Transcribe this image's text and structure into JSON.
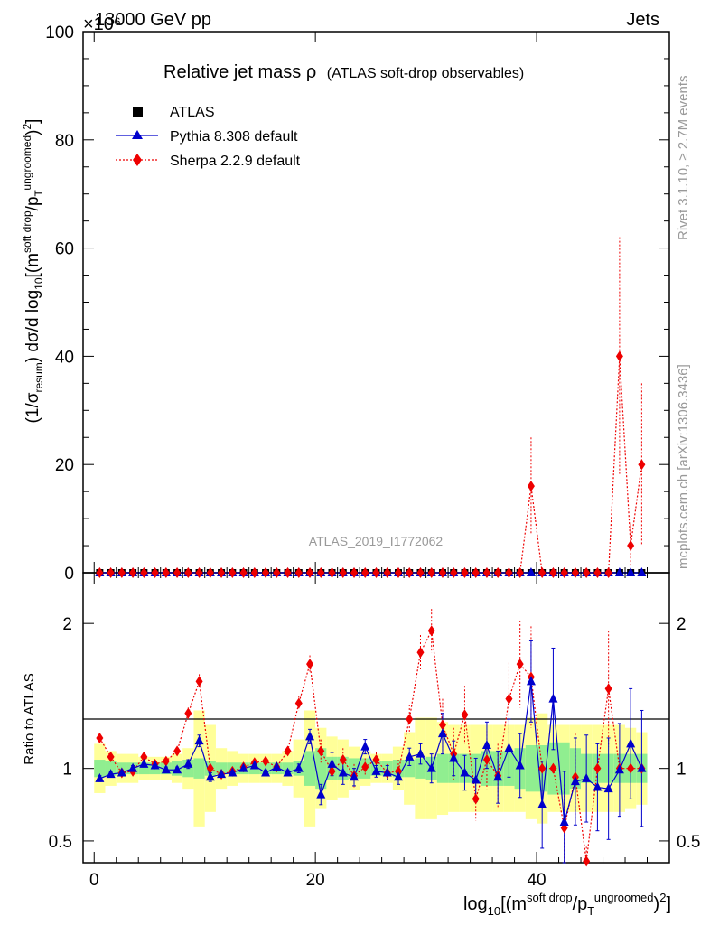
{
  "header": {
    "energy_label": "13000 GeV pp",
    "category_label": "Jets",
    "exponent_label": "×10⁶"
  },
  "side_labels": {
    "rivet": "Rivet 3.1.10, ≥ 2.7M events",
    "mcplots": "mcplots.cern.ch [arXiv:1306.3436]"
  },
  "chart_data": {
    "type": "line",
    "title_main": "Relative jet mass ρ",
    "title_sub": "(ATLAS soft-drop observables)",
    "analysis_id": "ATLAS_2019_I1772062",
    "ylabel_main": "(1/σ_resum) dσ/d log10[(m^soft drop/pT^ungroomed)^2]",
    "ylabel_ratio": "Ratio to ATLAS",
    "xlabel": "log10[(m^soft drop/pT^ungroomed)^2]",
    "xlim": [
      -1,
      52
    ],
    "ylim_main": [
      0,
      100
    ],
    "ylim_ratio": [
      0.35,
      2.35
    ],
    "x_ticks": [
      0,
      20,
      40
    ],
    "y_ticks_main": [
      0,
      20,
      40,
      60,
      80,
      100
    ],
    "y_ticks_ratio": [
      0.5,
      1,
      2
    ],
    "legend_position": "top-left",
    "grid": false,
    "colors": {
      "atlas": "#000000",
      "pythia": "#0000cc",
      "sherpa": "#ee0000",
      "band_inner": "#90ee90",
      "band_outer": "#ffff99"
    },
    "x": [
      0.5,
      1.5,
      2.5,
      3.5,
      4.5,
      5.5,
      6.5,
      7.5,
      8.5,
      9.5,
      10.5,
      11.5,
      12.5,
      13.5,
      14.5,
      15.5,
      16.5,
      17.5,
      18.5,
      19.5,
      20.5,
      21.5,
      22.5,
      23.5,
      24.5,
      25.5,
      26.5,
      27.5,
      28.5,
      29.5,
      30.5,
      31.5,
      32.5,
      33.5,
      34.5,
      35.5,
      36.5,
      37.5,
      38.5,
      39.5,
      40.5,
      41.5,
      42.5,
      43.5,
      44.5,
      45.5,
      46.5,
      47.5,
      48.5,
      49.5
    ],
    "series": [
      {
        "name": "ATLAS",
        "marker": "square",
        "main_values": [
          0,
          0,
          0,
          0,
          0,
          0,
          0,
          0,
          0,
          0,
          0,
          0,
          0,
          0,
          0,
          0,
          0,
          0,
          0,
          0,
          0,
          0,
          0,
          0,
          0,
          0,
          0,
          0,
          0,
          0,
          0,
          0,
          0,
          0,
          0,
          0,
          0,
          0,
          0,
          0,
          0,
          0,
          0,
          0,
          0,
          0,
          0,
          0,
          0,
          0
        ]
      },
      {
        "name": "Pythia 8.308 default",
        "marker": "triangle",
        "line": "solid",
        "main_values": [
          0,
          0,
          0,
          0,
          0,
          0,
          0,
          0,
          0,
          0,
          0,
          0,
          0,
          0,
          0,
          0,
          0,
          0,
          0,
          0,
          0,
          0,
          0,
          0,
          0,
          0,
          0,
          0,
          0,
          0,
          0,
          0,
          0,
          0,
          0,
          0,
          0,
          0,
          0,
          0,
          0,
          0,
          0,
          0,
          0,
          0,
          0,
          0,
          0,
          0
        ],
        "ratio_values": [
          0.93,
          0.96,
          0.97,
          1.0,
          1.03,
          1.02,
          0.99,
          0.99,
          1.03,
          1.19,
          0.94,
          0.96,
          0.97,
          1.0,
          1.02,
          0.97,
          1.01,
          0.97,
          1.0,
          1.22,
          0.82,
          1.03,
          0.97,
          0.94,
          1.15,
          0.98,
          0.97,
          0.94,
          1.08,
          1.1,
          1.0,
          1.24,
          1.07,
          0.97,
          0.92,
          1.16,
          0.94,
          1.14,
          1.02,
          1.6,
          0.75,
          1.48,
          0.63,
          0.91,
          0.93,
          0.87,
          0.86,
          0.99,
          1.17,
          1.0
        ],
        "ratio_err": [
          0.02,
          0.02,
          0.02,
          0.02,
          0.02,
          0.02,
          0.02,
          0.02,
          0.03,
          0.04,
          0.03,
          0.02,
          0.02,
          0.02,
          0.02,
          0.02,
          0.02,
          0.02,
          0.03,
          0.05,
          0.07,
          0.08,
          0.08,
          0.06,
          0.05,
          0.04,
          0.05,
          0.05,
          0.06,
          0.07,
          0.1,
          0.14,
          0.12,
          0.12,
          0.15,
          0.16,
          0.18,
          0.2,
          0.22,
          0.28,
          0.3,
          0.35,
          0.35,
          0.3,
          0.3,
          0.3,
          0.35,
          0.32,
          0.38,
          0.4
        ]
      },
      {
        "name": "Sherpa 2.2.9 default",
        "marker": "diamond",
        "line": "dotted",
        "main_values": [
          0,
          0,
          0,
          0,
          0,
          0,
          0,
          0,
          0,
          0,
          0,
          0,
          0,
          0,
          0,
          0,
          0,
          0,
          0,
          0,
          0,
          0,
          0,
          0,
          0,
          0,
          0,
          0,
          0,
          0,
          0,
          0,
          0,
          0,
          0,
          0,
          0,
          0,
          0,
          16,
          0,
          0,
          0,
          0,
          0,
          0,
          0,
          40,
          5,
          20
        ],
        "main_err": [
          0,
          0,
          0,
          0,
          0,
          0,
          0,
          0,
          0,
          0,
          0,
          0,
          0,
          0,
          0,
          0,
          0,
          0,
          0,
          0,
          0,
          0,
          0,
          0,
          0,
          0,
          0,
          0,
          0,
          0,
          0,
          0,
          0,
          0,
          0,
          0,
          0,
          0,
          0,
          9,
          0,
          0,
          0,
          0,
          0,
          0,
          0,
          22,
          4,
          15
        ],
        "ratio_values": [
          1.21,
          1.08,
          0.97,
          0.98,
          1.08,
          1.03,
          1.05,
          1.12,
          1.38,
          1.6,
          1.0,
          0.96,
          0.98,
          1.01,
          1.04,
          1.05,
          1.01,
          1.12,
          1.45,
          1.72,
          1.12,
          0.98,
          1.06,
          0.95,
          1.01,
          1.06,
          0.97,
          0.98,
          1.34,
          1.8,
          1.95,
          1.3,
          1.1,
          1.37,
          0.79,
          1.06,
          0.95,
          1.48,
          1.72,
          1.63,
          1.0,
          1.0,
          0.59,
          0.94,
          0.36,
          1.0,
          1.55,
          1.0,
          1.0,
          1.0
        ],
        "ratio_err": [
          0.02,
          0.02,
          0.02,
          0.02,
          0.02,
          0.02,
          0.02,
          0.03,
          0.04,
          0.05,
          0.03,
          0.03,
          0.03,
          0.03,
          0.03,
          0.03,
          0.03,
          0.03,
          0.05,
          0.06,
          0.08,
          0.08,
          0.08,
          0.08,
          0.06,
          0.05,
          0.06,
          0.08,
          0.1,
          0.12,
          0.15,
          0.18,
          0.18,
          0.2,
          0.15,
          0.2,
          0.22,
          0.25,
          0.3,
          0.35,
          0.0,
          0.0,
          0.3,
          0.3,
          0.1,
          0.0,
          0.4,
          0.0,
          0.0,
          0.0
        ]
      }
    ],
    "band_inner_halfwidth": [
      0.06,
      0.05,
      0.04,
      0.04,
      0.04,
      0.04,
      0.04,
      0.05,
      0.06,
      0.07,
      0.05,
      0.04,
      0.04,
      0.04,
      0.04,
      0.04,
      0.04,
      0.04,
      0.05,
      0.12,
      0.14,
      0.08,
      0.08,
      0.07,
      0.07,
      0.05,
      0.05,
      0.06,
      0.06,
      0.07,
      0.08,
      0.1,
      0.1,
      0.1,
      0.1,
      0.12,
      0.12,
      0.12,
      0.14,
      0.16,
      0.16,
      0.18,
      0.18,
      0.14,
      0.1,
      0.1,
      0.1,
      0.1,
      0.1,
      0.1
    ],
    "band_outer_halfwidth": [
      0.17,
      0.12,
      0.1,
      0.1,
      0.08,
      0.08,
      0.08,
      0.1,
      0.14,
      0.4,
      0.3,
      0.14,
      0.12,
      0.1,
      0.1,
      0.1,
      0.1,
      0.12,
      0.2,
      0.4,
      0.28,
      0.22,
      0.2,
      0.15,
      0.12,
      0.1,
      0.1,
      0.15,
      0.25,
      0.35,
      0.35,
      0.32,
      0.3,
      0.3,
      0.3,
      0.3,
      0.3,
      0.3,
      0.3,
      0.35,
      0.38,
      0.3,
      0.3,
      0.3,
      0.3,
      0.3,
      0.3,
      0.3,
      0.28,
      0.25
    ]
  }
}
